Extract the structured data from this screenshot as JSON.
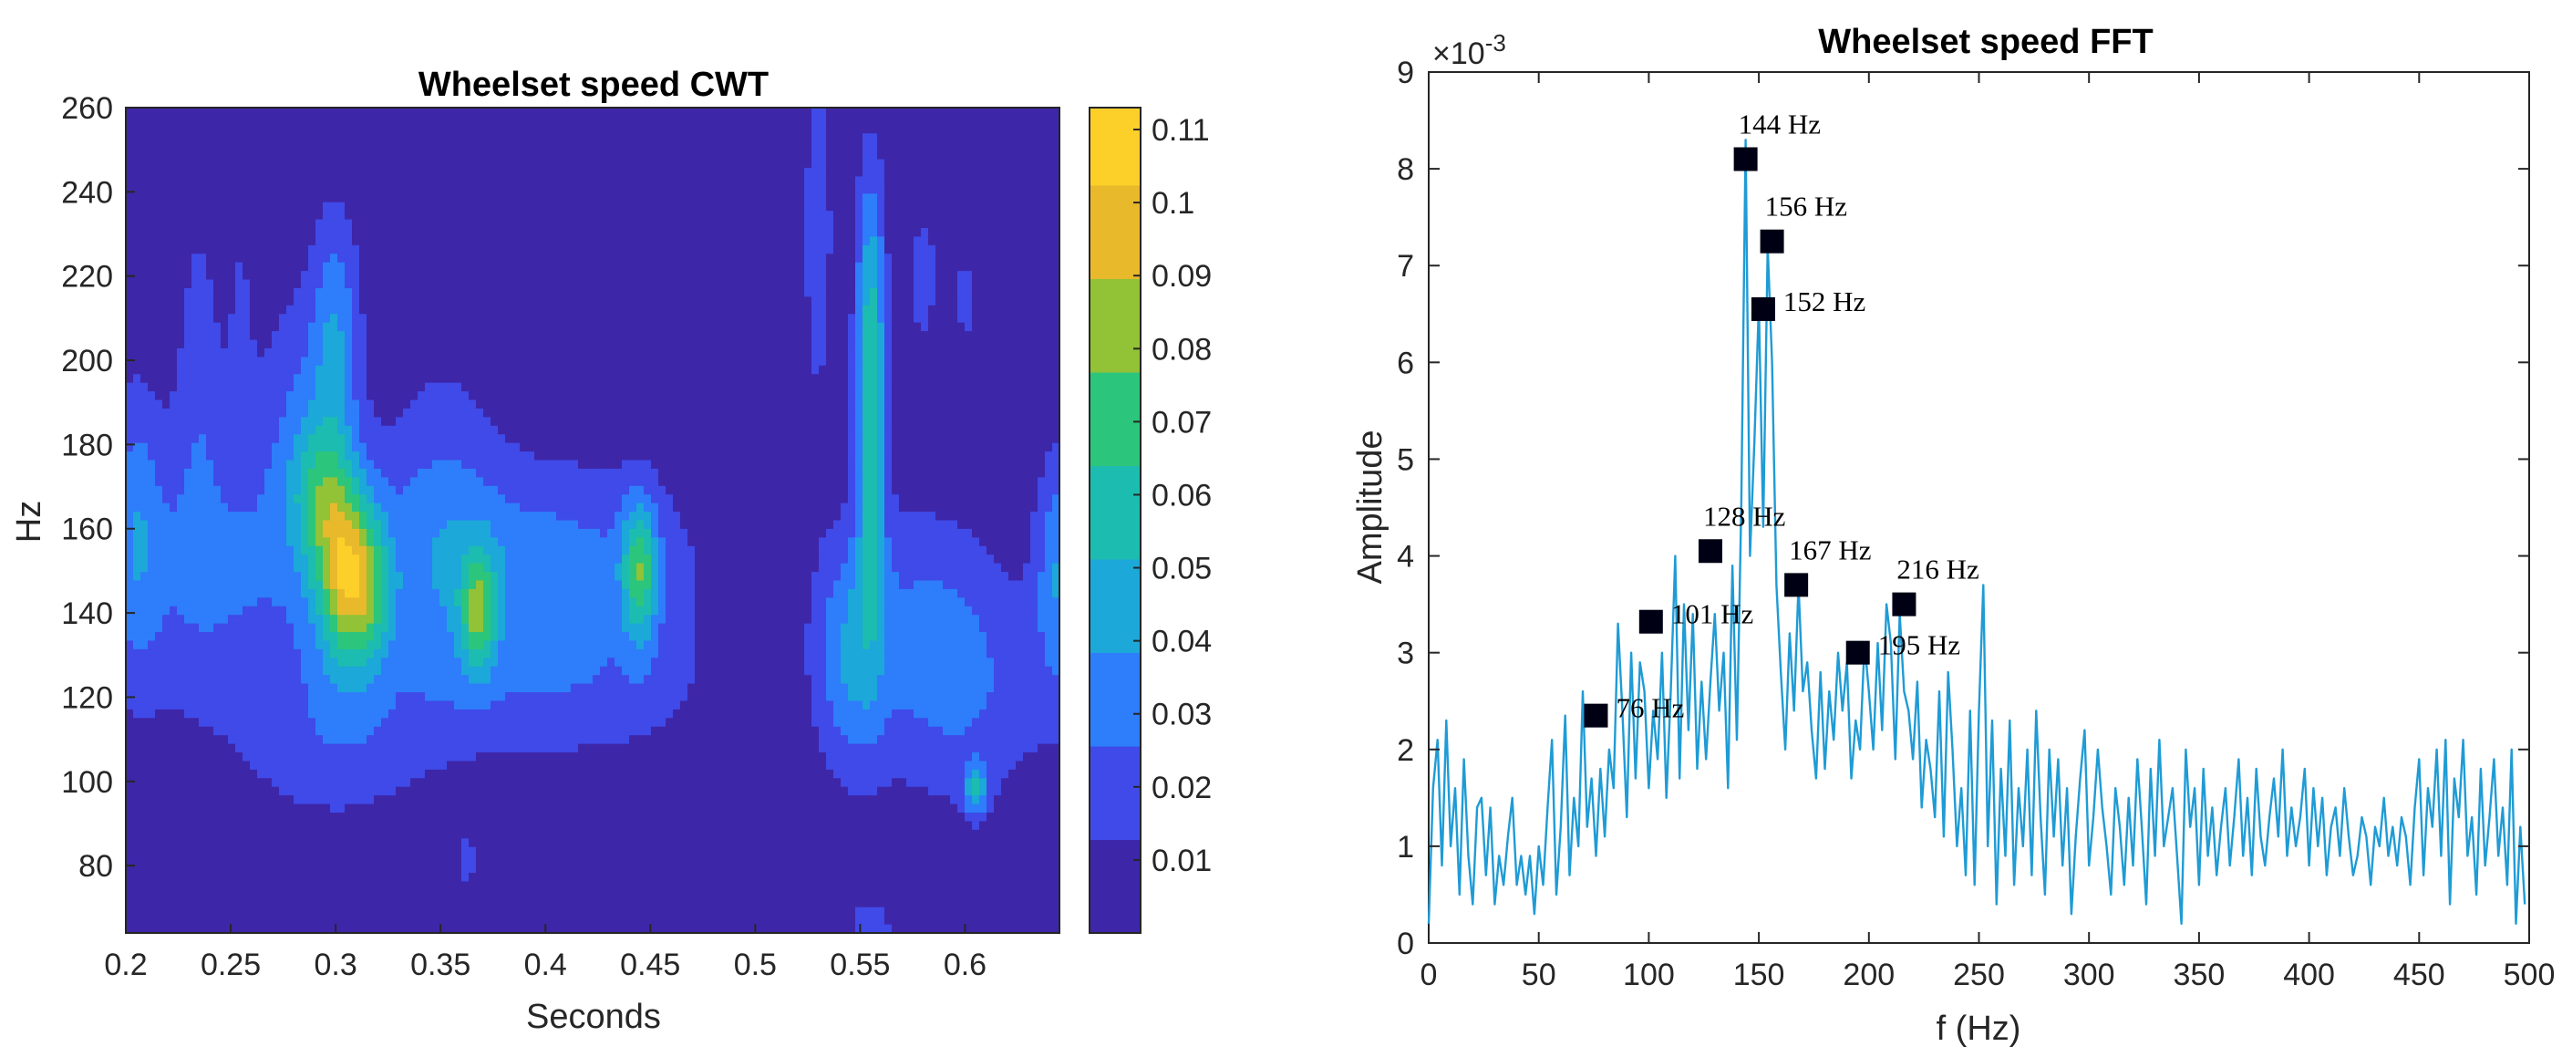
{
  "chart_data": [
    {
      "type": "heatmap",
      "title": "Wheelset speed CWT",
      "xlabel": "Seconds",
      "ylabel": "Hz",
      "xlim": [
        0.2,
        0.645
      ],
      "ylim": [
        64,
        260
      ],
      "x_ticks": [
        0.2,
        0.25,
        0.3,
        0.35,
        0.4,
        0.45,
        0.5,
        0.55,
        0.6
      ],
      "x_tick_labels": [
        "0.2",
        "0.25",
        "0.3",
        "0.35",
        "0.4",
        "0.45",
        "0.5",
        "0.55",
        "0.6"
      ],
      "y_ticks": [
        80,
        100,
        120,
        140,
        160,
        180,
        200,
        220,
        240,
        260
      ],
      "y_tick_labels": [
        "80",
        "100",
        "120",
        "140",
        "160",
        "180",
        "200",
        "220",
        "240",
        "260"
      ],
      "colorbar": {
        "range": [
          0,
          0.113
        ],
        "ticks": [
          0.01,
          0.02,
          0.03,
          0.04,
          0.05,
          0.06,
          0.07,
          0.08,
          0.09,
          0.1,
          0.11
        ],
        "tick_labels": [
          "0.01",
          "0.02",
          "0.03",
          "0.04",
          "0.05",
          "0.06",
          "0.07",
          "0.08",
          "0.09",
          "0.1",
          "0.11"
        ],
        "contour_levels": [
          0,
          0.0128,
          0.0256,
          0.0384,
          0.0512,
          0.064,
          0.0768,
          0.0896,
          0.1024,
          0.113
        ],
        "level_colors": [
          "#3e26a8",
          "#3f4ae8",
          "#2e7dfa",
          "#1ca8d9",
          "#1dbcb0",
          "#2cc57c",
          "#92c236",
          "#e9b92c",
          "#fdd029",
          "#f9fb0e"
        ]
      },
      "components": [
        {
          "t": 0.307,
          "f": 148,
          "amp": 0.085,
          "st": 0.011,
          "sf": 15
        },
        {
          "t": 0.293,
          "f": 168,
          "amp": 0.035,
          "st": 0.01,
          "sf": 12
        },
        {
          "t": 0.32,
          "f": 142,
          "amp": 0.012,
          "st": 0.006,
          "sf": 10
        },
        {
          "t": 0.3,
          "f": 205,
          "amp": 0.03,
          "st": 0.008,
          "sf": 22
        },
        {
          "t": 0.285,
          "f": 185,
          "amp": 0.02,
          "st": 0.015,
          "sf": 25
        },
        {
          "t": 0.24,
          "f": 150,
          "amp": 0.025,
          "st": 0.04,
          "sf": 25
        },
        {
          "t": 0.205,
          "f": 160,
          "amp": 0.022,
          "st": 0.008,
          "sf": 25
        },
        {
          "t": 0.3,
          "f": 110,
          "amp": 0.018,
          "st": 0.03,
          "sf": 15
        },
        {
          "t": 0.368,
          "f": 140,
          "amp": 0.05,
          "st": 0.006,
          "sf": 10
        },
        {
          "t": 0.4,
          "f": 150,
          "amp": 0.03,
          "st": 0.05,
          "sf": 18
        },
        {
          "t": 0.445,
          "f": 150,
          "amp": 0.055,
          "st": 0.006,
          "sf": 12
        },
        {
          "t": 0.35,
          "f": 160,
          "amp": 0.02,
          "st": 0.02,
          "sf": 30
        },
        {
          "t": 0.41,
          "f": 120,
          "amp": 0.015,
          "st": 0.05,
          "sf": 12
        },
        {
          "t": 0.545,
          "f": 130,
          "amp": 0.03,
          "st": 0.012,
          "sf": 20
        },
        {
          "t": 0.555,
          "f": 180,
          "amp": 0.045,
          "st": 0.005,
          "sf": 30
        },
        {
          "t": 0.555,
          "f": 215,
          "amp": 0.03,
          "st": 0.005,
          "sf": 25
        },
        {
          "t": 0.53,
          "f": 230,
          "amp": 0.02,
          "st": 0.005,
          "sf": 30
        },
        {
          "t": 0.58,
          "f": 140,
          "amp": 0.018,
          "st": 0.025,
          "sf": 20
        },
        {
          "t": 0.605,
          "f": 98,
          "amp": 0.04,
          "st": 0.004,
          "sf": 4
        },
        {
          "t": 0.6,
          "f": 120,
          "amp": 0.02,
          "st": 0.03,
          "sf": 20
        },
        {
          "t": 0.645,
          "f": 150,
          "amp": 0.035,
          "st": 0.008,
          "sf": 20
        },
        {
          "t": 0.58,
          "f": 220,
          "amp": 0.015,
          "st": 0.006,
          "sf": 15
        },
        {
          "t": 0.6,
          "f": 215,
          "amp": 0.015,
          "st": 0.004,
          "sf": 10
        },
        {
          "t": 0.362,
          "f": 81,
          "amp": 0.02,
          "st": 0.003,
          "sf": 5
        },
        {
          "t": 0.555,
          "f": 64,
          "amp": 0.02,
          "st": 0.008,
          "sf": 6
        },
        {
          "t": 0.235,
          "f": 200,
          "amp": 0.015,
          "st": 0.008,
          "sf": 30
        },
        {
          "t": 0.255,
          "f": 215,
          "amp": 0.01,
          "st": 0.005,
          "sf": 25
        }
      ]
    },
    {
      "type": "line",
      "title": "Wheelset speed FFT",
      "xlabel": "f (Hz)",
      "ylabel": "Amplitude",
      "xlim": [
        0,
        500
      ],
      "ylim": [
        0,
        9
      ],
      "y_exponent_label": "×10",
      "y_exponent_power": "-3",
      "x_ticks": [
        0,
        50,
        100,
        150,
        200,
        250,
        300,
        350,
        400,
        450,
        500
      ],
      "x_tick_labels": [
        "0",
        "50",
        "100",
        "150",
        "200",
        "250",
        "300",
        "350",
        "400",
        "450",
        "500"
      ],
      "y_ticks": [
        0,
        1,
        2,
        3,
        4,
        5,
        6,
        7,
        8,
        9
      ],
      "y_tick_labels": [
        "0",
        "1",
        "2",
        "3",
        "4",
        "5",
        "6",
        "7",
        "8",
        "9"
      ],
      "line_color": "#1f9bd5",
      "x_step": 2,
      "y": [
        0.2,
        1.6,
        2.1,
        0.8,
        2.3,
        1.0,
        1.6,
        0.5,
        1.9,
        0.9,
        0.4,
        1.4,
        1.5,
        0.7,
        1.4,
        0.4,
        0.9,
        0.6,
        1.1,
        1.5,
        0.6,
        0.9,
        0.5,
        0.9,
        0.3,
        1.0,
        0.6,
        1.4,
        2.1,
        0.5,
        1.2,
        2.35,
        0.7,
        1.5,
        1.0,
        2.6,
        1.2,
        1.7,
        0.9,
        1.8,
        1.1,
        2.0,
        1.6,
        3.3,
        2.4,
        1.3,
        3.0,
        1.7,
        2.9,
        2.6,
        1.6,
        2.4,
        1.9,
        3.0,
        1.5,
        2.6,
        4.0,
        1.7,
        3.5,
        2.2,
        3.4,
        1.8,
        2.7,
        1.9,
        2.7,
        3.4,
        2.4,
        3.0,
        1.6,
        3.9,
        2.1,
        4.5,
        8.3,
        4.0,
        5.2,
        6.6,
        4.3,
        7.2,
        6.0,
        3.7,
        2.8,
        2.0,
        3.2,
        2.4,
        3.7,
        2.6,
        2.9,
        2.2,
        1.7,
        2.8,
        1.8,
        2.6,
        2.1,
        3.0,
        2.4,
        2.9,
        1.7,
        2.3,
        2.0,
        3.1,
        2.6,
        2.0,
        3.1,
        2.2,
        3.5,
        3.1,
        1.9,
        3.4,
        2.6,
        2.4,
        1.9,
        2.7,
        1.4,
        2.1,
        1.8,
        1.3,
        2.6,
        1.1,
        2.8,
        2.0,
        1.0,
        1.6,
        0.7,
        2.4,
        0.6,
        2.4,
        3.7,
        1.0,
        2.3,
        0.4,
        1.8,
        0.9,
        2.3,
        0.6,
        1.6,
        1.0,
        2.0,
        0.7,
        2.4,
        1.3,
        0.5,
        2.0,
        1.1,
        1.9,
        0.8,
        1.6,
        0.3,
        1.1,
        1.7,
        2.2,
        0.8,
        1.3,
        2.0,
        1.4,
        1.0,
        0.5,
        1.6,
        1.2,
        0.6,
        1.5,
        0.8,
        1.9,
        1.2,
        0.4,
        1.8,
        0.9,
        2.1,
        1.0,
        1.3,
        1.6,
        0.9,
        0.2,
        2.0,
        1.2,
        1.6,
        0.6,
        1.8,
        0.9,
        1.4,
        0.7,
        1.2,
        1.6,
        0.8,
        1.3,
        1.9,
        0.9,
        1.5,
        0.7,
        1.8,
        1.1,
        0.8,
        1.3,
        1.7,
        1.1,
        2.0,
        0.9,
        1.4,
        1.0,
        1.3,
        1.8,
        0.8,
        1.6,
        1.0,
        1.5,
        0.7,
        1.2,
        1.4,
        0.9,
        1.6,
        1.1,
        0.7,
        0.9,
        1.3,
        1.1,
        0.6,
        1.2,
        1.0,
        1.5,
        0.9,
        1.2,
        0.8,
        1.3,
        1.1,
        0.6,
        1.4,
        1.9,
        0.7,
        1.6,
        1.2,
        2.0,
        0.9,
        2.1,
        0.4,
        1.7,
        1.3,
        2.1,
        0.9,
        1.3,
        0.5,
        1.8,
        0.8,
        1.3,
        1.9,
        0.9,
        1.4,
        0.6,
        2.0,
        0.2,
        1.2,
        0.4
      ],
      "markers": [
        {
          "f": 76,
          "a": 2.35,
          "label": "76 Hz",
          "pos": "right"
        },
        {
          "f": 101,
          "a": 3.32,
          "label": "101 Hz",
          "pos": "right"
        },
        {
          "f": 128,
          "a": 4.05,
          "label": "128 Hz",
          "pos": "above"
        },
        {
          "f": 144,
          "a": 8.1,
          "label": "144 Hz",
          "pos": "above"
        },
        {
          "f": 156,
          "a": 7.25,
          "label": "156 Hz",
          "pos": "above"
        },
        {
          "f": 152,
          "a": 6.55,
          "label": "152 Hz",
          "pos": "right"
        },
        {
          "f": 167,
          "a": 3.7,
          "label": "167 Hz",
          "pos": "above"
        },
        {
          "f": 195,
          "a": 3.0,
          "label": "195 Hz",
          "pos": "right"
        },
        {
          "f": 216,
          "a": 3.5,
          "label": "216 Hz",
          "pos": "above"
        }
      ]
    }
  ]
}
